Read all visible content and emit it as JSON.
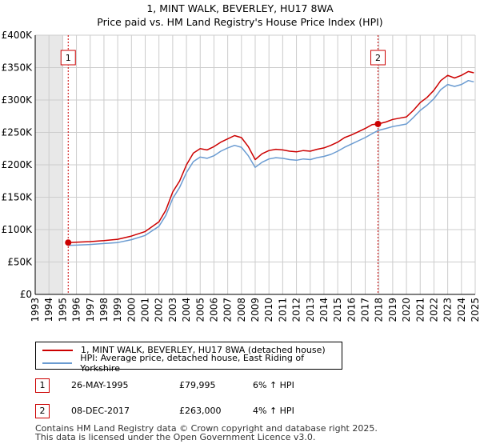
{
  "title": {
    "line1": "1, MINT WALK, BEVERLEY, HU17 8WA",
    "line2": "Price paid vs. HM Land Registry's House Price Index (HPI)"
  },
  "colors": {
    "property": "#cc0000",
    "hpi": "#6a9bd1",
    "grid": "#cccccc",
    "shade": "#e8e8e8"
  },
  "legend": {
    "property_label": "1, MINT WALK, BEVERLEY, HU17 8WA (detached house)",
    "hpi_label": "HPI: Average price, detached house, East Riding of Yorkshire"
  },
  "sales": [
    {
      "num": "1",
      "date": "26-MAY-1995",
      "price": "£79,995",
      "hpi_change": "6% ↑ HPI"
    },
    {
      "num": "2",
      "date": "08-DEC-2017",
      "price": "£263,000",
      "hpi_change": "4% ↑ HPI"
    }
  ],
  "footer": {
    "line1": "Contains HM Land Registry data © Crown copyright and database right 2025.",
    "line2": "This data is licensed under the Open Government Licence v3.0."
  },
  "chart_data": {
    "type": "line",
    "title": "1, MINT WALK, BEVERLEY, HU17 8WA — Price paid vs. HM Land Registry's House Price Index (HPI)",
    "xlim": [
      1993,
      2025
    ],
    "ylim": [
      0,
      400000
    ],
    "x_ticks": [
      1993,
      1994,
      1995,
      1996,
      1997,
      1998,
      1999,
      2000,
      2001,
      2002,
      2003,
      2004,
      2005,
      2006,
      2007,
      2008,
      2009,
      2010,
      2011,
      2012,
      2013,
      2014,
      2015,
      2016,
      2017,
      2018,
      2019,
      2020,
      2021,
      2022,
      2023,
      2024,
      2025
    ],
    "y_ticks": [
      {
        "value": 0,
        "label": "£0"
      },
      {
        "value": 50000,
        "label": "£50K"
      },
      {
        "value": 100000,
        "label": "£100K"
      },
      {
        "value": 150000,
        "label": "£150K"
      },
      {
        "value": 200000,
        "label": "£200K"
      },
      {
        "value": 250000,
        "label": "£250K"
      },
      {
        "value": 300000,
        "label": "£300K"
      },
      {
        "value": 350000,
        "label": "£350K"
      },
      {
        "value": 400000,
        "label": "£400K"
      }
    ],
    "shaded_range": [
      1993,
      1995.0
    ],
    "markers": [
      {
        "label": "1",
        "x": 1995.4,
        "y": 79995
      },
      {
        "label": "2",
        "x": 2017.93,
        "y": 263000
      }
    ],
    "series": [
      {
        "name": "1, MINT WALK, BEVERLEY, HU17 8WA (detached house)",
        "x": [
          1995.4,
          1996,
          1997,
          1998,
          1999,
          2000,
          2001,
          2002,
          2002.5,
          2003,
          2003.5,
          2004,
          2004.5,
          2005,
          2005.5,
          2006,
          2006.5,
          2007,
          2007.5,
          2008,
          2008.5,
          2009,
          2009.5,
          2010,
          2010.5,
          2011,
          2011.5,
          2012,
          2012.5,
          2013,
          2013.5,
          2014,
          2014.5,
          2015,
          2015.5,
          2016,
          2016.5,
          2017,
          2017.5,
          2017.93,
          2018.5,
          2019,
          2019.5,
          2020,
          2020.5,
          2021,
          2021.5,
          2022,
          2022.5,
          2023,
          2023.5,
          2024,
          2024.5,
          2024.9
        ],
        "values": [
          79995,
          80500,
          81500,
          83000,
          85000,
          90000,
          97000,
          112000,
          130000,
          158000,
          175000,
          200000,
          218000,
          225000,
          223000,
          228000,
          235000,
          240000,
          245000,
          242000,
          228000,
          208000,
          217000,
          222000,
          224000,
          223000,
          221000,
          220000,
          222000,
          221000,
          224000,
          226000,
          230000,
          235000,
          242000,
          246000,
          251000,
          256000,
          262000,
          263000,
          266000,
          270000,
          272000,
          274000,
          284000,
          296000,
          304000,
          315000,
          330000,
          338000,
          334000,
          338000,
          344000,
          342000
        ]
      },
      {
        "name": "HPI: Average price, detached house, East Riding of Yorkshire",
        "x": [
          1995.4,
          1996,
          1997,
          1998,
          1999,
          2000,
          2001,
          2002,
          2002.5,
          2003,
          2003.5,
          2004,
          2004.5,
          2005,
          2005.5,
          2006,
          2006.5,
          2007,
          2007.5,
          2008,
          2008.5,
          2009,
          2009.5,
          2010,
          2010.5,
          2011,
          2011.5,
          2012,
          2012.5,
          2013,
          2013.5,
          2014,
          2014.5,
          2015,
          2015.5,
          2016,
          2016.5,
          2017,
          2017.5,
          2017.93,
          2018.5,
          2019,
          2019.5,
          2020,
          2020.5,
          2021,
          2021.5,
          2022,
          2022.5,
          2023,
          2023.5,
          2024,
          2024.5,
          2024.9
        ],
        "values": [
          75500,
          76000,
          77000,
          78500,
          80000,
          84500,
          91000,
          105000,
          122000,
          148000,
          165000,
          188000,
          205000,
          212000,
          210000,
          214000,
          221000,
          226000,
          230000,
          227000,
          214000,
          196000,
          204000,
          209000,
          211000,
          210000,
          208000,
          207000,
          209000,
          208000,
          211000,
          213000,
          216000,
          221000,
          227000,
          232000,
          237000,
          242000,
          248000,
          253000,
          256000,
          259000,
          261000,
          263000,
          273000,
          284000,
          292000,
          302000,
          316000,
          324000,
          321000,
          324000,
          330000,
          328000
        ]
      }
    ]
  }
}
